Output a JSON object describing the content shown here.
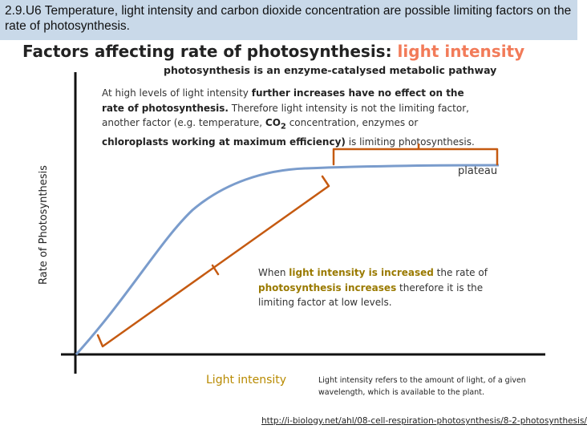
{
  "slide": {
    "header_text": "2.9.U6 Temperature, light intensity and carbon dioxide concentration are possible limiting factors on the rate of photosynthesis.",
    "title_main": "Factors affecting rate of photosynthesis: ",
    "title_highlight": "light intensity",
    "subtitle": "photosynthesis is an enzyme-catalysed metabolic pathway",
    "plateau_note": {
      "p1": "At high levels of light intensity ",
      "b1": "further increases have no effect on the rate of photosynthesis.",
      "p2": " Therefore light intensity is not the limiting factor, another factor (e.g. temperature, ",
      "b2": "CO",
      "b2_sub": "2",
      "b2_rest": " concentration, enzymes or ",
      "b3": "chloroplasts working at maximum efficiency)",
      "p3": " is limiting photosynthesis."
    },
    "increase_note": {
      "p1": "When ",
      "b1": "light intensity is increased",
      "p2": " the rate of ",
      "b2": "photosynthesis increases",
      "p3": " therefore it is the limiting factor at low levels."
    },
    "plateau_label": "plateau",
    "y_axis_label": "Rate of Photosynthesis",
    "x_axis_label": "Light intensity",
    "definition": "Light intensity refers to the amount of light, of a given wavelength, which is available to the plant.",
    "source_url": "http://i-biology.net/ahl/08-cell-respiration-photosynthesis/8-2-photosynthesis/"
  },
  "colors": {
    "header_bg": "#c9d9e9",
    "curve": "#7a9ccc",
    "bracket": "#c55a11",
    "highlight": "#f27b59",
    "axis": "#111111"
  }
}
